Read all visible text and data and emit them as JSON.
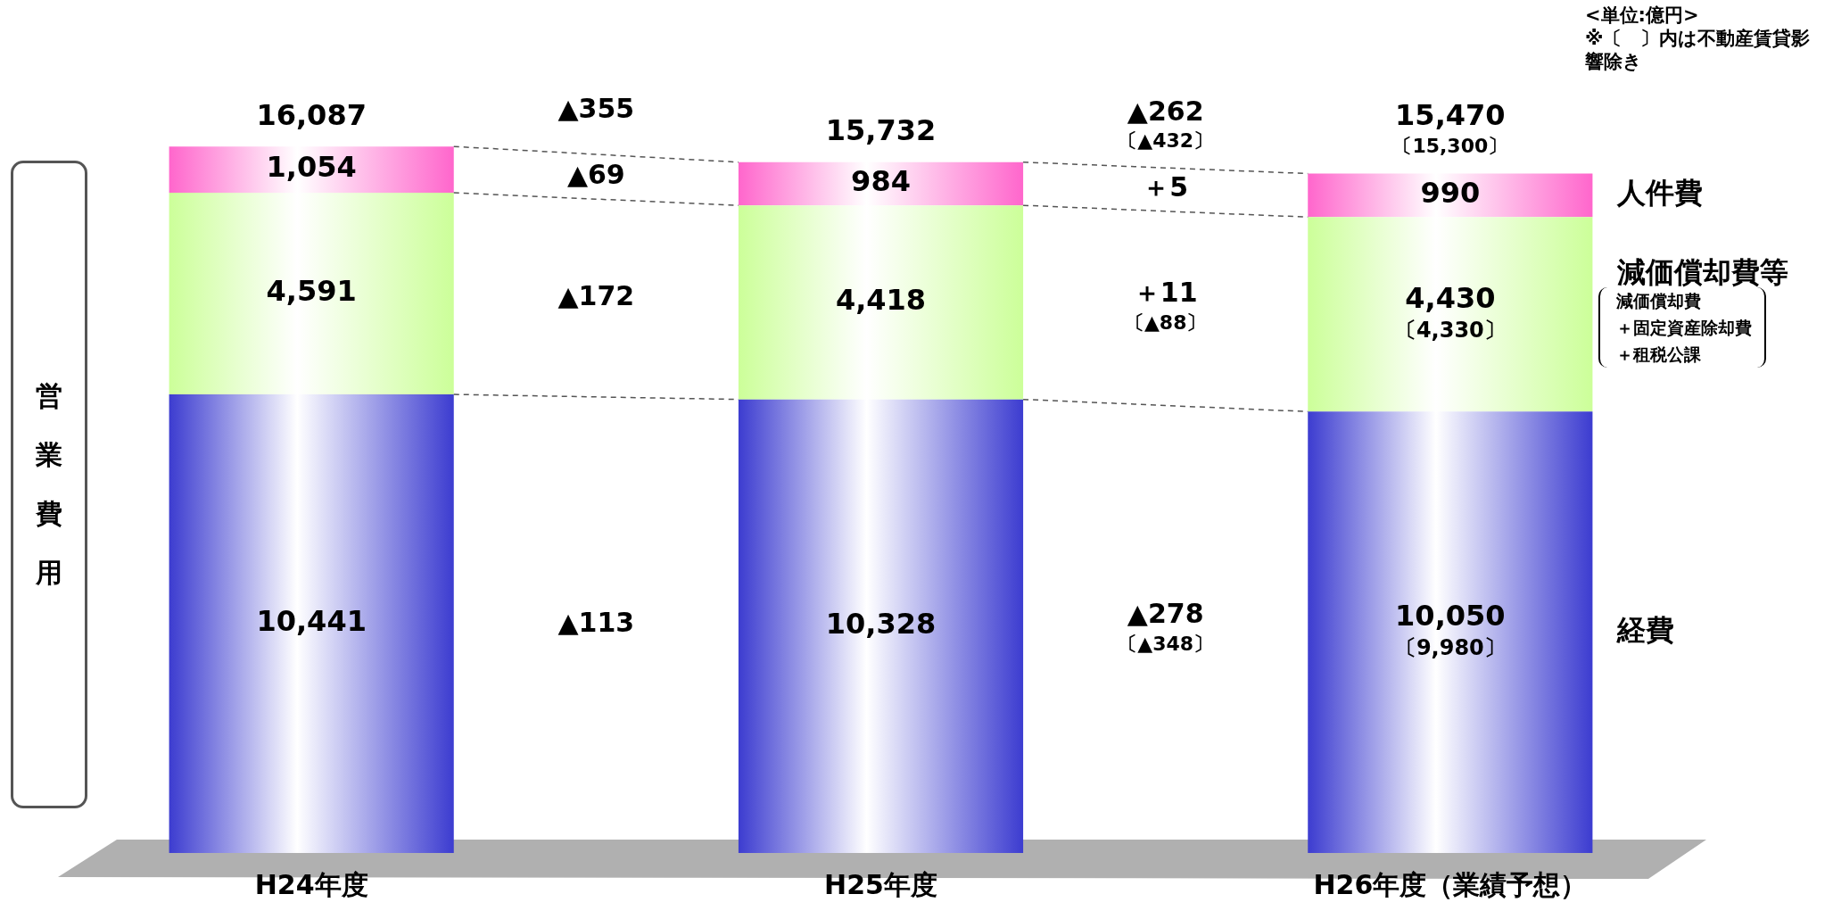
{
  "chart_data": {
    "type": "bar",
    "stacked": true,
    "ylabel": "営業費用",
    "categories": [
      "H24年度",
      "H25年度",
      "H26年度（業績予想）"
    ],
    "series": [
      {
        "name": "経費",
        "color": "#3c3cd0",
        "values": [
          10441,
          10328,
          10050
        ],
        "value_labels": [
          "10,441",
          "10,328",
          "10,050\n〔9,980〕"
        ]
      },
      {
        "name": "減価償却費等",
        "color": "#ccff99",
        "values": [
          4591,
          4418,
          4430
        ],
        "value_labels": [
          "4,591",
          "4,418",
          "4,430\n〔4,330〕"
        ]
      },
      {
        "name": "人件費",
        "color": "#ff66cc",
        "values": [
          1054,
          984,
          990
        ],
        "value_labels": [
          "1,054",
          "984",
          "990"
        ]
      }
    ],
    "totals": [
      "16,087",
      "15,732",
      "15,470\n〔15,300〕"
    ],
    "annotations": [
      "▲355",
      "▲69",
      "▲172",
      "▲113",
      "▲262\n〔▲432〕",
      "＋5",
      "＋11\n〔▲88〕",
      "▲278\n〔▲348〕",
      "<単位:億円>",
      "※〔　〕内は不動産賃貸影響除き",
      "減価償却費",
      "＋固定資産除却費",
      "＋租税公課"
    ]
  }
}
